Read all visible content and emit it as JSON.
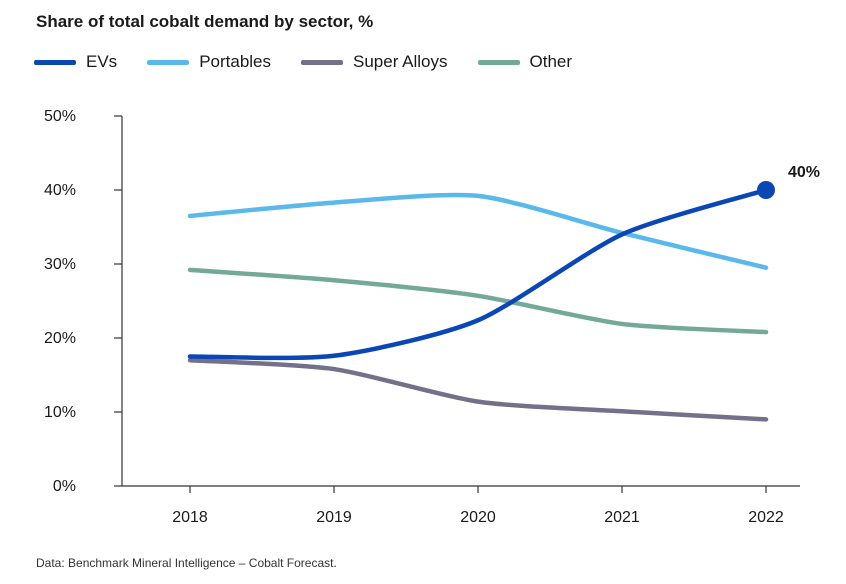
{
  "chart_data": {
    "type": "line",
    "title": "Share of total cobalt demand by sector, %",
    "categories": [
      "2018",
      "2019",
      "2020",
      "2021",
      "2022"
    ],
    "ylim": [
      0,
      50
    ],
    "yticks": [
      0,
      10,
      20,
      30,
      40,
      50
    ],
    "ytick_labels": [
      "0%",
      "10%",
      "20%",
      "30%",
      "40%",
      "50%"
    ],
    "grid": false,
    "legend_position": "top-left",
    "series": [
      {
        "name": "EVs",
        "color": "#0b46b5",
        "values": [
          17.5,
          17.6,
          22.4,
          34.0,
          40.0
        ]
      },
      {
        "name": "Portables",
        "color": "#5bb8ea",
        "values": [
          36.5,
          38.3,
          39.2,
          34.2,
          29.5
        ]
      },
      {
        "name": "Super Alloys",
        "color": "#75708a",
        "values": [
          17.0,
          15.8,
          11.4,
          10.1,
          9.0
        ]
      },
      {
        "name": "Other",
        "color": "#74a99a",
        "values": [
          29.2,
          27.8,
          25.7,
          21.9,
          20.8
        ]
      }
    ],
    "annotations": [
      {
        "series": "EVs",
        "category": "2022",
        "text": "40%"
      }
    ]
  },
  "source": "Data: Benchmark Mineral Intelligence – Cobalt Forecast."
}
